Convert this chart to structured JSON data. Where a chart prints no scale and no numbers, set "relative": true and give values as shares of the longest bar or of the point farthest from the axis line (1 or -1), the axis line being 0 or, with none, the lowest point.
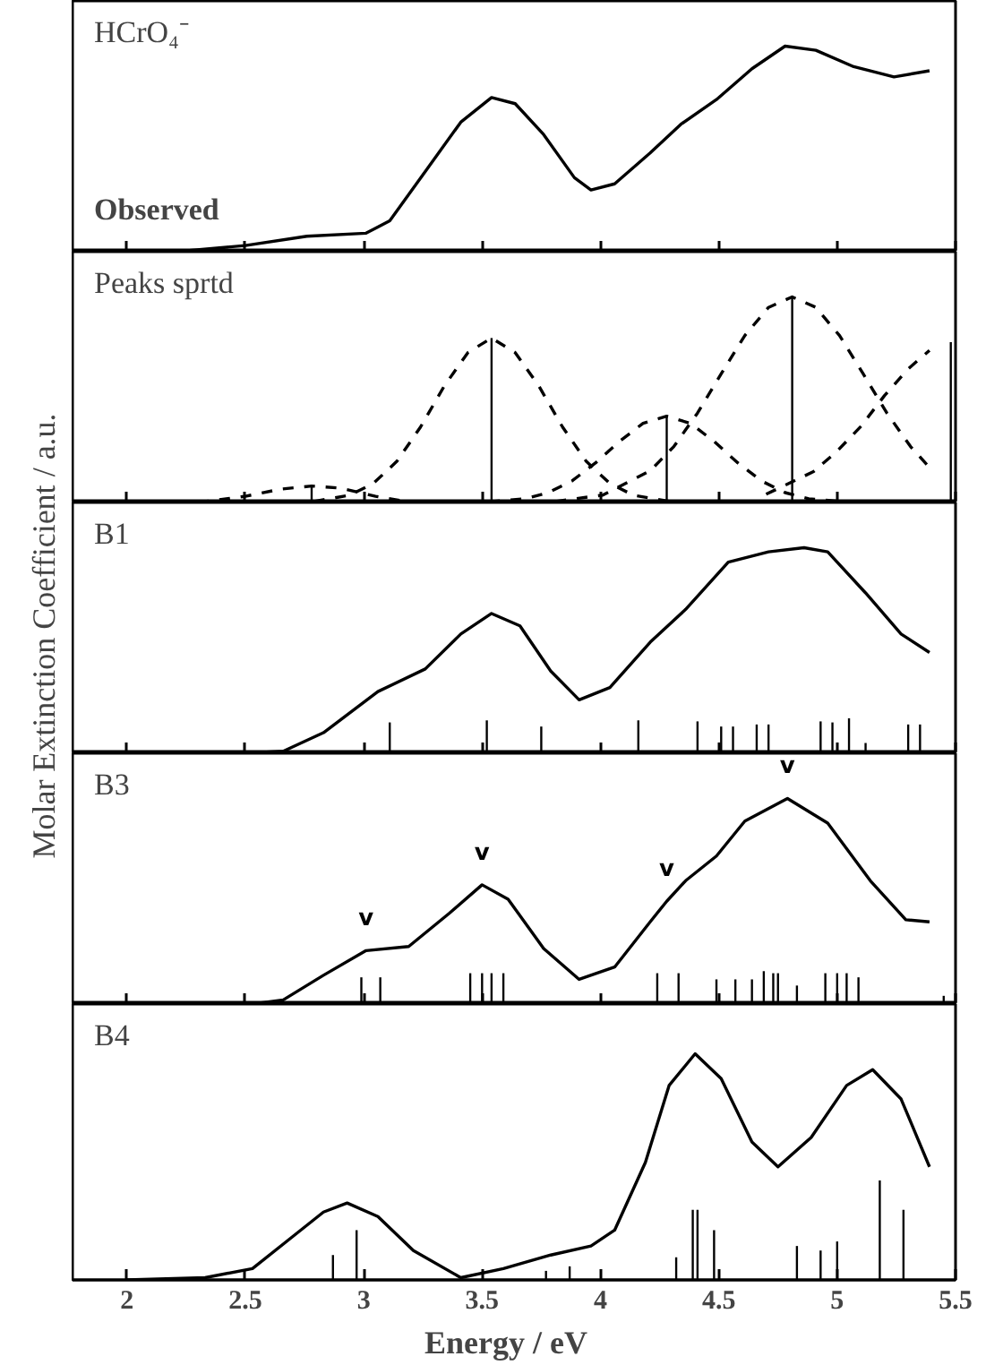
{
  "chart_data": [
    {
      "type": "line",
      "relative": true,
      "title": "HCrO₄⁻",
      "subtitle": "Observed",
      "xlim": [
        1.77,
        5.5
      ],
      "xticks": [
        2,
        2.5,
        3,
        3.5,
        4,
        4.5,
        5,
        5.5
      ],
      "tick_labels": false,
      "ylabel": "Molar Extinction Coefficient  /  a.u.",
      "series": [
        {
          "color": "#000000",
          "x": [
            1.85,
            2.21,
            2.5,
            2.76,
            3.01,
            3.11,
            3.26,
            3.41,
            3.54,
            3.64,
            3.76,
            3.89,
            3.96,
            4.06,
            4.21,
            4.34,
            4.49,
            4.64,
            4.78,
            4.91,
            5.07,
            5.24,
            5.39
          ],
          "values": [
            0,
            0,
            0.03,
            0.075,
            0.09,
            0.15,
            0.39,
            0.63,
            0.75,
            0.72,
            0.57,
            0.36,
            0.3,
            0.33,
            0.48,
            0.62,
            0.74,
            0.89,
            1,
            0.98,
            0.9,
            0.85,
            0.88
          ]
        }
      ]
    },
    {
      "type": "line",
      "relative": true,
      "title": "Peaks sprtd",
      "xlim": [
        1.77,
        5.5
      ],
      "xticks": [
        2,
        2.5,
        3,
        3.5,
        4,
        4.5,
        5,
        5.5
      ],
      "tick_labels": false,
      "series": [
        {
          "color": "#000000",
          "line_style": "dashed",
          "x": [
            2.3,
            2.5,
            2.65,
            2.78,
            2.9,
            3.05,
            3.2
          ],
          "values": [
            0,
            0.03,
            0.065,
            0.08,
            0.07,
            0.03,
            0
          ]
        },
        {
          "color": "#000000",
          "line_style": "dashed",
          "x": [
            2.79,
            2.94,
            3.04,
            3.14,
            3.24,
            3.34,
            3.44,
            3.54,
            3.64,
            3.74,
            3.84,
            3.94,
            4.04,
            4.14,
            4.29
          ],
          "values": [
            0.005,
            0.035,
            0.092,
            0.2,
            0.367,
            0.566,
            0.729,
            0.8,
            0.729,
            0.566,
            0.367,
            0.2,
            0.092,
            0.035,
            0.005
          ]
        },
        {
          "color": "#000000",
          "line_style": "dashed",
          "x": [
            3.53,
            3.68,
            3.78,
            3.88,
            3.98,
            4.08,
            4.18,
            4.28,
            4.38,
            4.48,
            4.58,
            4.68,
            4.78,
            4.88,
            5.03
          ],
          "values": [
            0.003,
            0.018,
            0.048,
            0.105,
            0.193,
            0.297,
            0.385,
            0.42,
            0.385,
            0.297,
            0.193,
            0.105,
            0.048,
            0.018,
            0.003
          ]
        },
        {
          "color": "#000000",
          "line_style": "dashed",
          "x": [
            3.81,
            4.01,
            4.21,
            4.31,
            4.41,
            4.51,
            4.61,
            4.71,
            4.81,
            4.91,
            5.01,
            5.11,
            5.21,
            5.31,
            5.39
          ],
          "values": [
            0.005,
            0.036,
            0.154,
            0.272,
            0.435,
            0.626,
            0.812,
            0.949,
            1,
            0.949,
            0.812,
            0.626,
            0.435,
            0.272,
            0.17
          ]
        },
        {
          "color": "#000000",
          "line_style": "dashed",
          "x": [
            4.7,
            4.9,
            5.0,
            5.1,
            5.2,
            5.3,
            5.39
          ],
          "values": [
            0.04,
            0.15,
            0.25,
            0.37,
            0.52,
            0.65,
            0.74
          ]
        },
        {
          "type": "bar",
          "color": "#000000",
          "x": [
            2.78,
            3.54,
            4.28,
            4.81,
            5.48
          ],
          "values": [
            0.08,
            0.8,
            0.42,
            1,
            0.78
          ]
        }
      ]
    },
    {
      "type": "line",
      "relative": true,
      "title": "B1",
      "xlim": [
        1.77,
        5.5
      ],
      "xticks": [
        2,
        2.5,
        3,
        3.5,
        4,
        4.5,
        5,
        5.5
      ],
      "tick_labels": false,
      "series": [
        {
          "color": "#000000",
          "x": [
            2.5,
            2.66,
            2.83,
            3.06,
            3.26,
            3.41,
            3.54,
            3.66,
            3.79,
            3.91,
            4.04,
            4.21,
            4.36,
            4.54,
            4.71,
            4.86,
            4.96,
            5.12,
            5.27,
            5.39
          ],
          "values": [
            0,
            0.01,
            0.1,
            0.3,
            0.41,
            0.58,
            0.68,
            0.62,
            0.4,
            0.26,
            0.32,
            0.54,
            0.7,
            0.93,
            0.98,
            1,
            0.98,
            0.78,
            0.58,
            0.49
          ]
        },
        {
          "type": "bar",
          "color": "#000000",
          "x": [
            3.11,
            3.52,
            3.75,
            4.16,
            4.41,
            4.51,
            4.56,
            4.66,
            4.71,
            4.93,
            4.98,
            5.05,
            5.12,
            5.3,
            5.35
          ],
          "values": [
            0.15,
            0.16,
            0.13,
            0.16,
            0.155,
            0.13,
            0.13,
            0.14,
            0.14,
            0.155,
            0.15,
            0.17,
            0.05,
            0.14,
            0.14
          ]
        }
      ]
    },
    {
      "type": "line",
      "relative": true,
      "title": "B3",
      "xlim": [
        1.77,
        5.5
      ],
      "xticks": [
        2,
        2.5,
        3,
        3.5,
        4,
        4.5,
        5,
        5.5
      ],
      "tick_labels": false,
      "annotations": [
        {
          "text": "v",
          "x": 3.01,
          "y": 0.26
        },
        {
          "text": "v",
          "x": 3.5,
          "y": 0.58
        },
        {
          "text": "v",
          "x": 4.28,
          "y": 0.5
        },
        {
          "text": "v",
          "x": 4.79,
          "y": 1
        }
      ],
      "series": [
        {
          "color": "#000000",
          "x": [
            2.53,
            2.66,
            2.83,
            3.01,
            3.19,
            3.36,
            3.5,
            3.61,
            3.76,
            3.91,
            4.06,
            4.21,
            4.28,
            4.36,
            4.49,
            4.61,
            4.79,
            4.96,
            5.14,
            5.29,
            5.39
          ],
          "values": [
            0,
            0.02,
            0.14,
            0.26,
            0.28,
            0.44,
            0.58,
            0.51,
            0.27,
            0.12,
            0.18,
            0.4,
            0.5,
            0.6,
            0.72,
            0.89,
            1,
            0.88,
            0.6,
            0.41,
            0.4
          ]
        },
        {
          "type": "bar",
          "color": "#000000",
          "x": [
            2.99,
            3.07,
            3.45,
            3.5,
            3.54,
            3.59,
            4.24,
            4.33,
            4.49,
            4.57,
            4.64,
            4.69,
            4.73,
            4.75,
            4.83,
            4.95,
            5.0,
            5.04,
            5.09,
            5.45
          ],
          "values": [
            0.13,
            0.13,
            0.15,
            0.15,
            0.15,
            0.15,
            0.15,
            0.15,
            0.12,
            0.12,
            0.12,
            0.16,
            0.15,
            0.15,
            0.09,
            0.15,
            0.15,
            0.15,
            0.13,
            0.04
          ]
        }
      ]
    },
    {
      "type": "line",
      "relative": true,
      "title": "B4",
      "xlabel": "Energy  /  eV",
      "xlim": [
        1.77,
        5.5
      ],
      "xticks": [
        2,
        2.5,
        3,
        3.5,
        4,
        4.5,
        5,
        5.5
      ],
      "tick_labels": "x",
      "series": [
        {
          "color": "#000000",
          "x": [
            2.0,
            2.33,
            2.53,
            2.71,
            2.83,
            2.93,
            3.06,
            3.21,
            3.41,
            3.59,
            3.79,
            3.96,
            4.06,
            4.19,
            4.29,
            4.4,
            4.51,
            4.64,
            4.75,
            4.89,
            5.04,
            5.15,
            5.27,
            5.39
          ],
          "values": [
            0,
            0.01,
            0.05,
            0.2,
            0.3,
            0.34,
            0.28,
            0.13,
            0.01,
            0.05,
            0.11,
            0.15,
            0.22,
            0.52,
            0.86,
            1,
            0.89,
            0.61,
            0.5,
            0.63,
            0.86,
            0.93,
            0.8,
            0.5
          ]
        },
        {
          "type": "bar",
          "color": "#000000",
          "x": [
            2.87,
            2.97,
            3.77,
            3.87,
            4.32,
            4.39,
            4.41,
            4.48,
            4.83,
            4.93,
            5.0,
            5.18,
            5.28
          ],
          "values": [
            0.11,
            0.22,
            0.04,
            0.06,
            0.1,
            0.31,
            0.31,
            0.22,
            0.15,
            0.13,
            0.17,
            0.44,
            0.31
          ]
        }
      ]
    }
  ]
}
